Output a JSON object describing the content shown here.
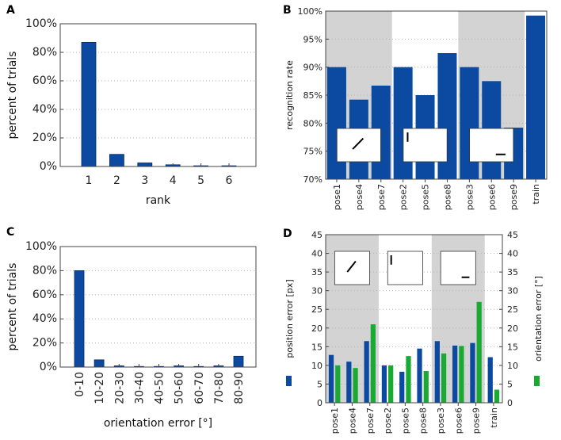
{
  "colors": {
    "blue": "#0b4aa0",
    "green": "#1aaa33",
    "shade": "#d3d3d3",
    "axis": "#444444",
    "grid": "#b5b5b5"
  },
  "panels": {
    "A": "A",
    "B": "B",
    "C": "C",
    "D": "D"
  },
  "chart_data": [
    {
      "id": "A",
      "type": "bar",
      "categories": [
        "1",
        "2",
        "3",
        "4",
        "5",
        "6"
      ],
      "values": [
        87,
        8.5,
        2.5,
        1.2,
        0.5,
        0.5
      ],
      "ylim": [
        0,
        100
      ],
      "yticks": [
        0,
        20,
        40,
        60,
        80,
        100
      ],
      "ytick_labels": [
        "0%",
        "20%",
        "40%",
        "60%",
        "80%",
        "100%"
      ],
      "xlabel": "rank",
      "ylabel": "percent of trials",
      "grid": true
    },
    {
      "id": "B",
      "type": "bar",
      "categories": [
        "pose1",
        "pose4",
        "pose7",
        "pose2",
        "pose5",
        "pose8",
        "pose3",
        "pose6",
        "pose9",
        "train"
      ],
      "values": [
        90,
        84.2,
        86.7,
        90,
        85,
        92.5,
        90,
        87.5,
        79.2,
        99.2
      ],
      "ylim": [
        70,
        100
      ],
      "yticks": [
        70,
        75,
        80,
        85,
        90,
        95,
        100
      ],
      "ytick_labels": [
        "70%",
        "75%",
        "80%",
        "85%",
        "90%",
        "95%",
        "100%"
      ],
      "xlabel": "",
      "ylabel": "recognition rate",
      "grid": true,
      "shaded_groups": [
        [
          0,
          2
        ],
        [
          6,
          8
        ]
      ],
      "insets": [
        {
          "group": [
            0,
            2
          ],
          "line": "diagonal"
        },
        {
          "group": [
            3,
            5
          ],
          "line": "vertical"
        },
        {
          "group": [
            6,
            8
          ],
          "line": "horizontal"
        }
      ]
    },
    {
      "id": "C",
      "type": "bar",
      "categories": [
        "0-10",
        "10-20",
        "20-30",
        "30-40",
        "40-50",
        "50-60",
        "60-70",
        "70-80",
        "80-90"
      ],
      "values": [
        80,
        6,
        1,
        0.5,
        0.5,
        1,
        0.5,
        1,
        9
      ],
      "ylim": [
        0,
        100
      ],
      "yticks": [
        0,
        20,
        40,
        60,
        80,
        100
      ],
      "ytick_labels": [
        "0%",
        "20%",
        "40%",
        "60%",
        "80%",
        "100%"
      ],
      "xlabel": "orientation error [°]",
      "ylabel": "percent of trials",
      "grid": true
    },
    {
      "id": "D",
      "type": "bar",
      "categories": [
        "pose1",
        "pose4",
        "pose7",
        "pose2",
        "pose5",
        "pose8",
        "pose3",
        "pose6",
        "pose9",
        "train"
      ],
      "series": [
        {
          "name": "position error [px]",
          "values": [
            12.8,
            11,
            16.5,
            10,
            8.3,
            14.5,
            16.5,
            15.3,
            16,
            12.2
          ]
        },
        {
          "name": "orientation error [°]",
          "values": [
            10,
            9.3,
            21,
            10,
            12.5,
            8.5,
            13.2,
            15.2,
            27,
            3.5
          ]
        }
      ],
      "ylim": [
        0,
        45
      ],
      "yticks": [
        0,
        5,
        10,
        15,
        20,
        25,
        30,
        35,
        40,
        45
      ],
      "ytick_labels": [
        "0",
        "5",
        "10",
        "15",
        "20",
        "25",
        "30",
        "35",
        "40",
        "45"
      ],
      "ylabel": "position error [px]",
      "ylabel_right": "orientation error [°]",
      "grid": true,
      "shaded_groups": [
        [
          0,
          2
        ],
        [
          6,
          8
        ]
      ],
      "insets": [
        {
          "group": [
            0,
            2
          ],
          "line": "diagonal"
        },
        {
          "group": [
            3,
            5
          ],
          "line": "vertical"
        },
        {
          "group": [
            6,
            8
          ],
          "line": "horizontal"
        }
      ]
    }
  ]
}
